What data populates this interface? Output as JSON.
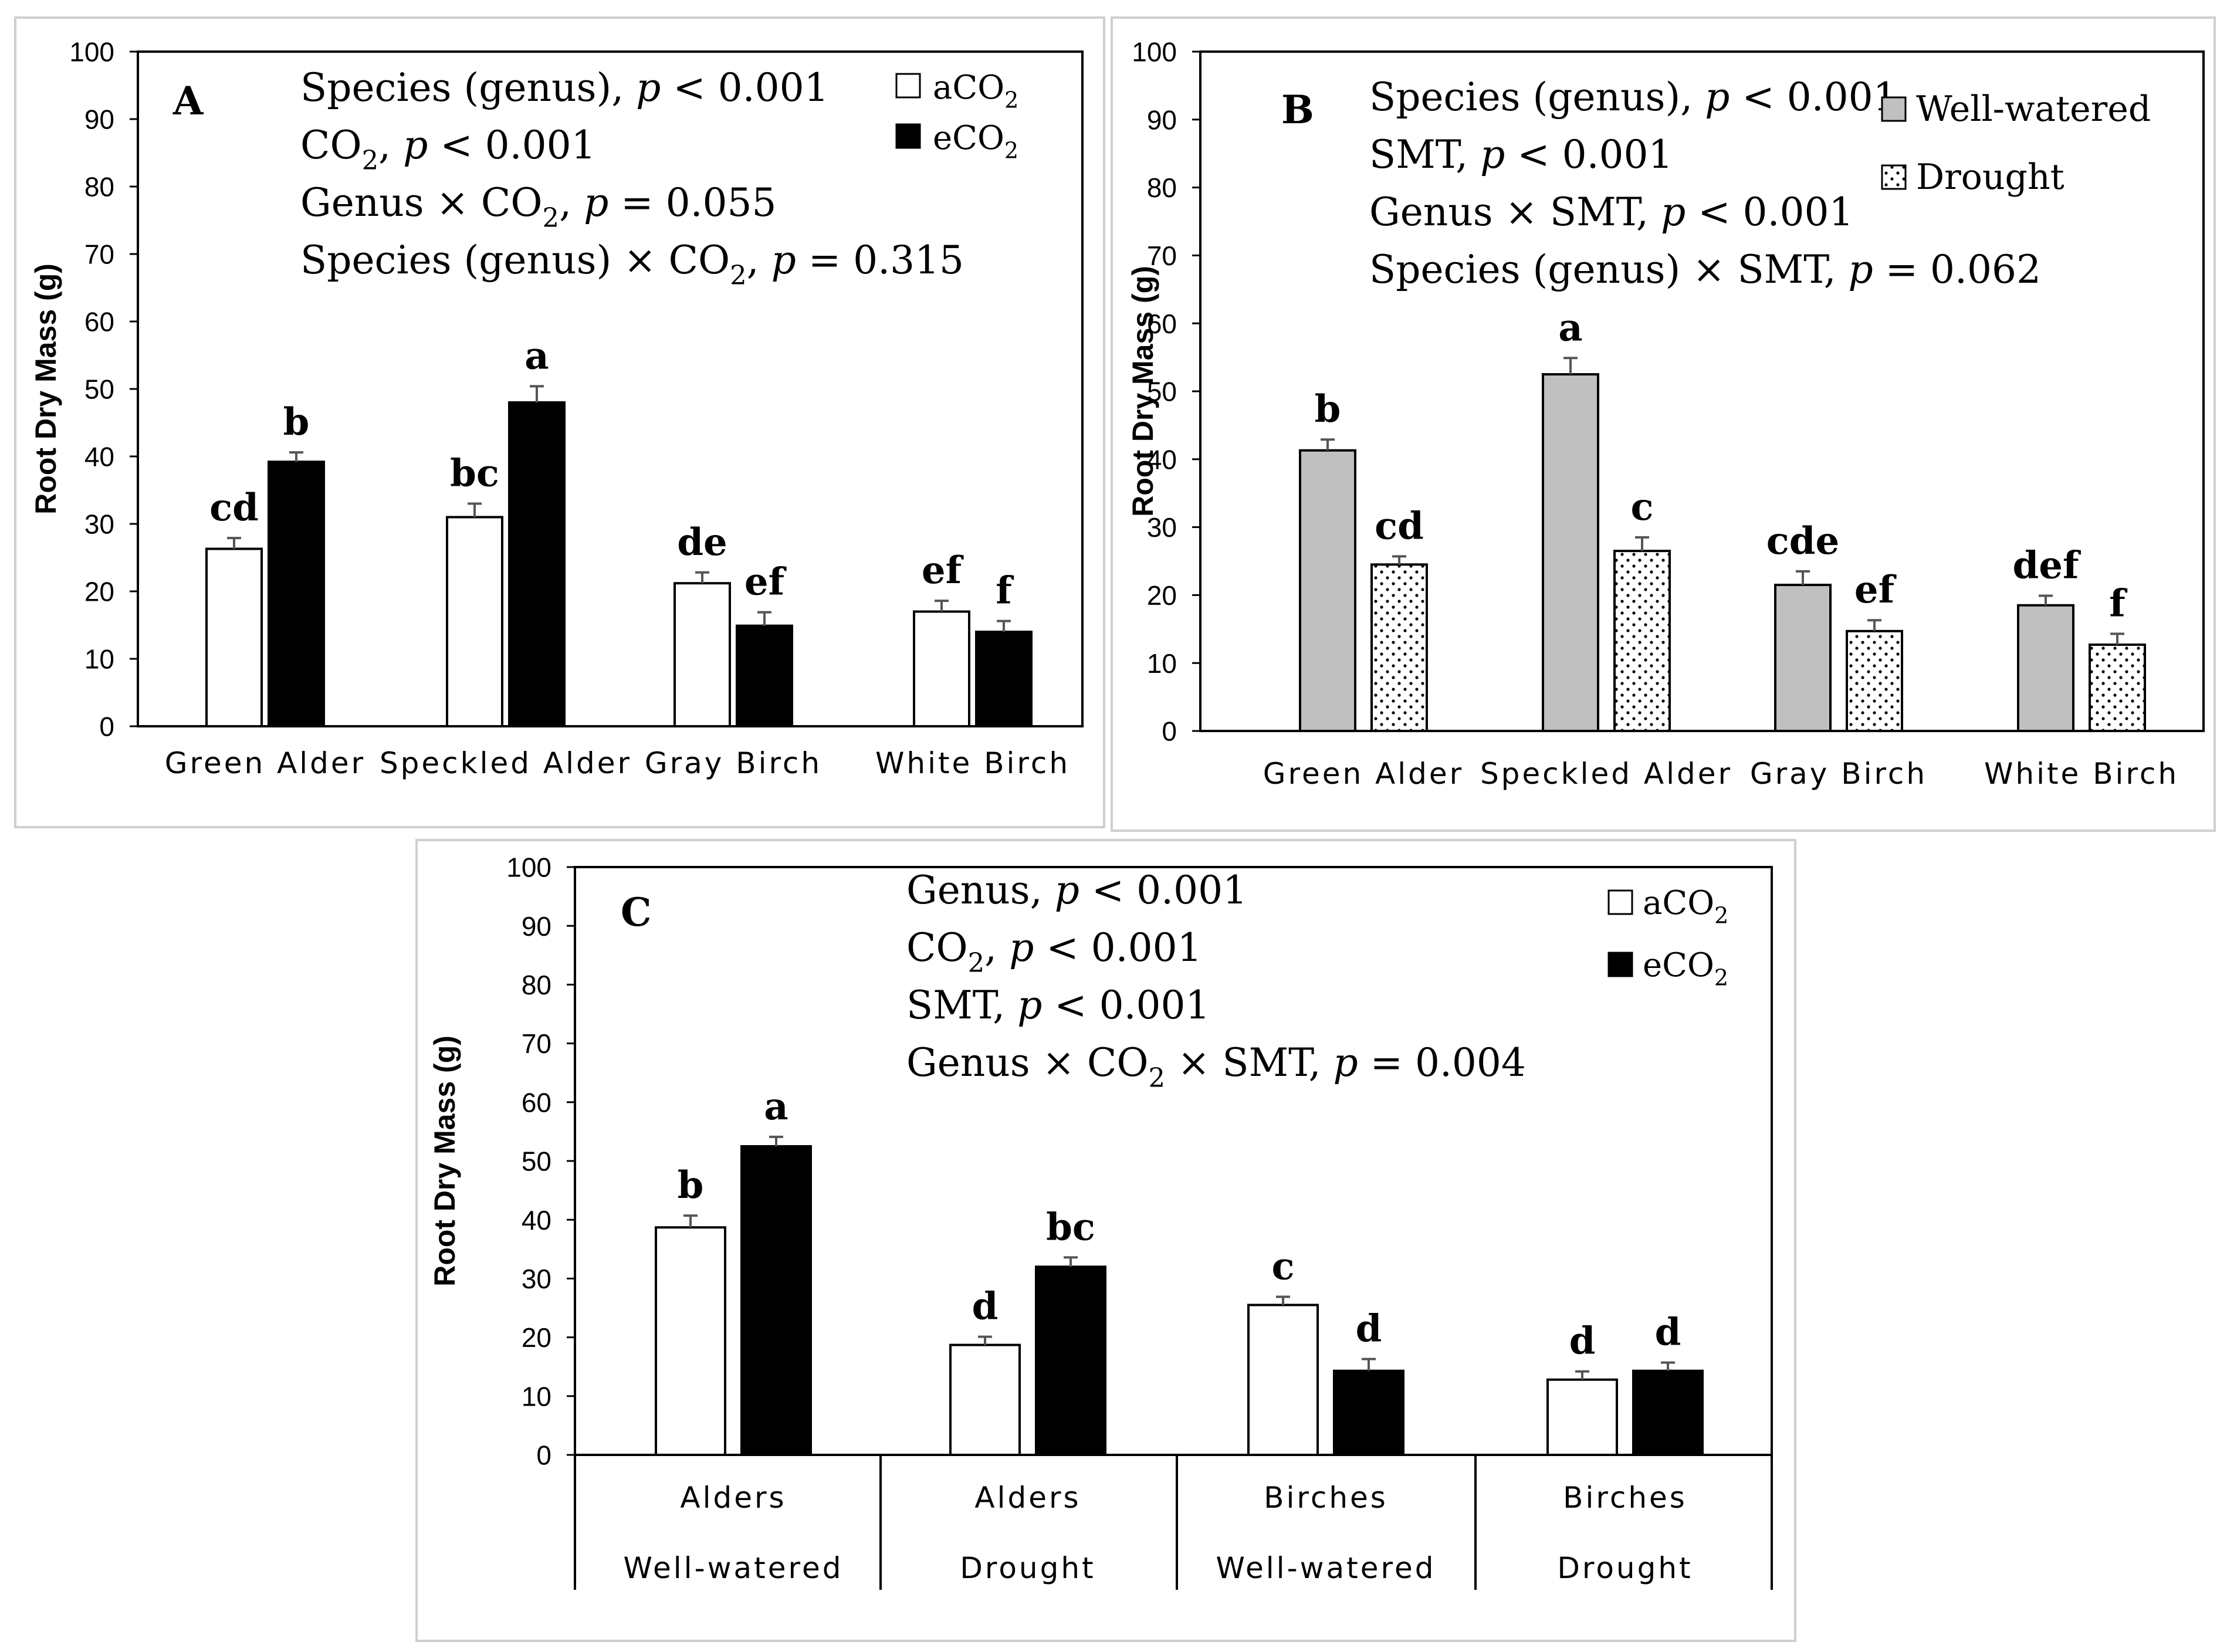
{
  "chart_data": [
    {
      "panel": "A",
      "type": "bar",
      "ylabel": "Root Dry Mass (g)",
      "ylim": [
        0,
        100
      ],
      "yticks": [
        0,
        10,
        20,
        30,
        40,
        50,
        60,
        70,
        80,
        90,
        100
      ],
      "categories": [
        "Green Alder",
        "Speckled Alder",
        "Gray Birch",
        "White Birch"
      ],
      "series": [
        {
          "name": "aCO₂",
          "fill": "white",
          "values": [
            26.3,
            31,
            21.2,
            17
          ],
          "errors": [
            1.6,
            2,
            1.6,
            1.6
          ],
          "letters": [
            "cd",
            "bc",
            "de",
            "ef"
          ]
        },
        {
          "name": "eCO₂",
          "fill": "black",
          "values": [
            39.2,
            48,
            14.9,
            14
          ],
          "errors": [
            1.4,
            2.4,
            2,
            1.6
          ],
          "letters": [
            "b",
            "a",
            "ef",
            "f"
          ]
        }
      ],
      "stats": [
        "Species (genus),  p < 0.001",
        "CO₂,  p < 0.001",
        "Genus × CO₂,  p = 0.055",
        "Species (genus) × CO₂,  p = 0.315"
      ],
      "legend_position": "top-right"
    },
    {
      "panel": "B",
      "type": "bar",
      "ylabel": "Root Dry Mass (g)",
      "ylim": [
        0,
        100
      ],
      "yticks": [
        0,
        10,
        20,
        30,
        40,
        50,
        60,
        70,
        80,
        90,
        100
      ],
      "categories": [
        "Green Alder",
        "Speckled Alder",
        "Gray Birch",
        "White Birch"
      ],
      "series": [
        {
          "name": "Well-watered",
          "fill": "gray",
          "values": [
            41.3,
            52.5,
            21.5,
            18.5
          ],
          "errors": [
            1.6,
            2.4,
            2,
            1.4
          ],
          "letters": [
            "b",
            "a",
            "cde",
            "def"
          ]
        },
        {
          "name": "Drought",
          "fill": "dots",
          "values": [
            24.5,
            26.5,
            14.7,
            12.7
          ],
          "errors": [
            1.2,
            2,
            1.6,
            1.6
          ],
          "letters": [
            "cd",
            "c",
            "ef",
            "f"
          ]
        }
      ],
      "stats": [
        "Species (genus),  p < 0.001",
        "SMT, p < 0.001",
        "Genus × SMT,  p < 0.001",
        "Species (genus) × SMT,  p = 0.062"
      ],
      "legend_position": "top-right"
    },
    {
      "panel": "C",
      "type": "bar",
      "ylabel": "Root Dry Mass (g)",
      "ylim": [
        0,
        100
      ],
      "yticks": [
        0,
        10,
        20,
        30,
        40,
        50,
        60,
        70,
        80,
        90,
        100
      ],
      "categories": [
        "Alders",
        "Alders",
        "Birches",
        "Birches"
      ],
      "subcategories": [
        "Well-watered",
        "Drought",
        "Well-watered",
        "Drought"
      ],
      "series": [
        {
          "name": "aCO₂",
          "fill": "white",
          "values": [
            38.7,
            18.7,
            25.5,
            12.8
          ],
          "errors": [
            2,
            1.4,
            1.4,
            1.4
          ],
          "letters": [
            "b",
            "d",
            "c",
            "d"
          ]
        },
        {
          "name": "eCO₂",
          "fill": "black",
          "values": [
            52.5,
            32,
            14.3,
            14.3
          ],
          "errors": [
            1.6,
            1.6,
            2,
            1.4
          ],
          "letters": [
            "a",
            "bc",
            "d",
            "d"
          ]
        }
      ],
      "stats": [
        "Genus,  p < 0.001",
        "CO₂,  p < 0.001",
        "SMT, p < 0.001",
        "Genus × CO₂ × SMT, p = 0.004"
      ],
      "legend_position": "top-right"
    }
  ]
}
